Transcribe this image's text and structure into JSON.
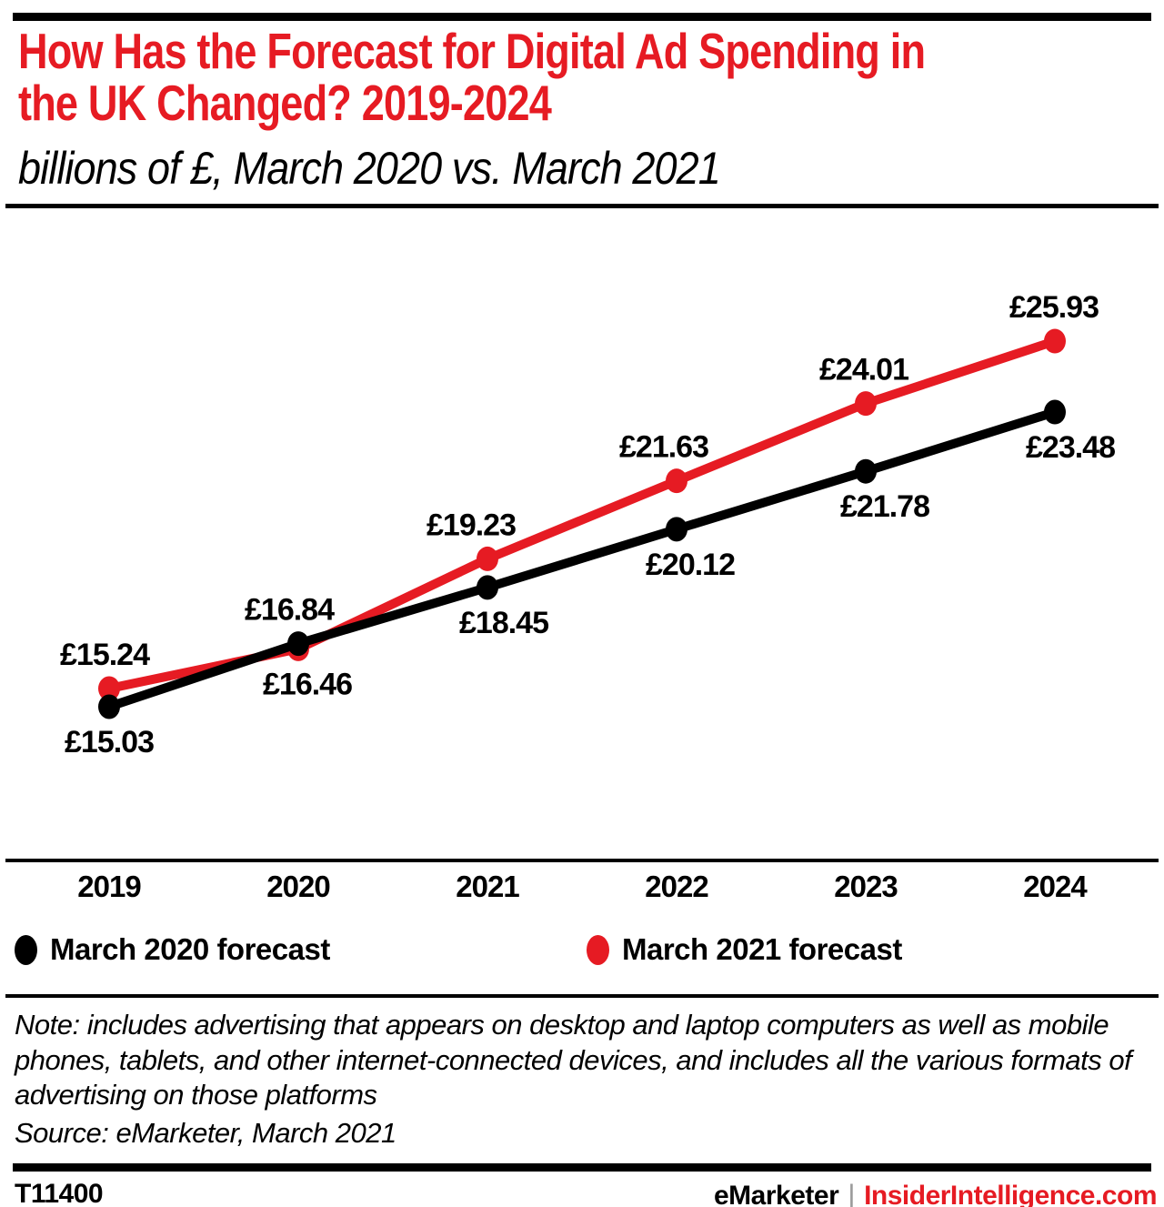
{
  "header": {
    "title_lines": [
      "How Has the Forecast for Digital Ad Spending in",
      "the UK Changed? 2019-2024"
    ],
    "subtitle": "billions of £, March 2020 vs. March 2021"
  },
  "chart_data": {
    "type": "line",
    "title": "How Has the Forecast for Digital Ad Spending in the UK Changed? 2019-2024",
    "unit": "billions of £",
    "categories": [
      "2019",
      "2020",
      "2021",
      "2022",
      "2023",
      "2024"
    ],
    "series": [
      {
        "name": "March 2020 forecast",
        "color": "#000000",
        "values": [
          15.03,
          16.84,
          18.45,
          20.12,
          21.78,
          23.48
        ],
        "labels": [
          "£15.03",
          "£16.84",
          "£18.45",
          "£20.12",
          "£21.78",
          "£23.48"
        ]
      },
      {
        "name": "March 2021 forecast",
        "color": "#e61b23",
        "values": [
          15.24,
          16.46,
          19.23,
          21.63,
          24.01,
          25.93
        ],
        "labels": [
          "£15.24",
          "£16.46",
          "£19.23",
          "£21.63",
          "£24.01",
          "£25.93"
        ]
      }
    ],
    "ylim": [
      14,
      27
    ],
    "grid": false,
    "legend_position": "bottom"
  },
  "legend": {
    "items": [
      {
        "label": "March 2020 forecast",
        "color": "#000000"
      },
      {
        "label": "March 2021 forecast",
        "color": "#e61b23"
      }
    ]
  },
  "footnote": {
    "note": "Note: includes advertising that appears on desktop and laptop computers as well as mobile phones, tablets, and other internet-connected devices, and includes all the various formats of advertising on those platforms",
    "source": "Source: eMarketer, March 2021"
  },
  "footer": {
    "chart_id": "T11400",
    "brand": "eMarketer",
    "separator": "|",
    "site": "InsiderIntelligence.com"
  },
  "colors": {
    "accent_red": "#e61b23",
    "black": "#000000",
    "separator_gray": "#9b9b9b"
  }
}
